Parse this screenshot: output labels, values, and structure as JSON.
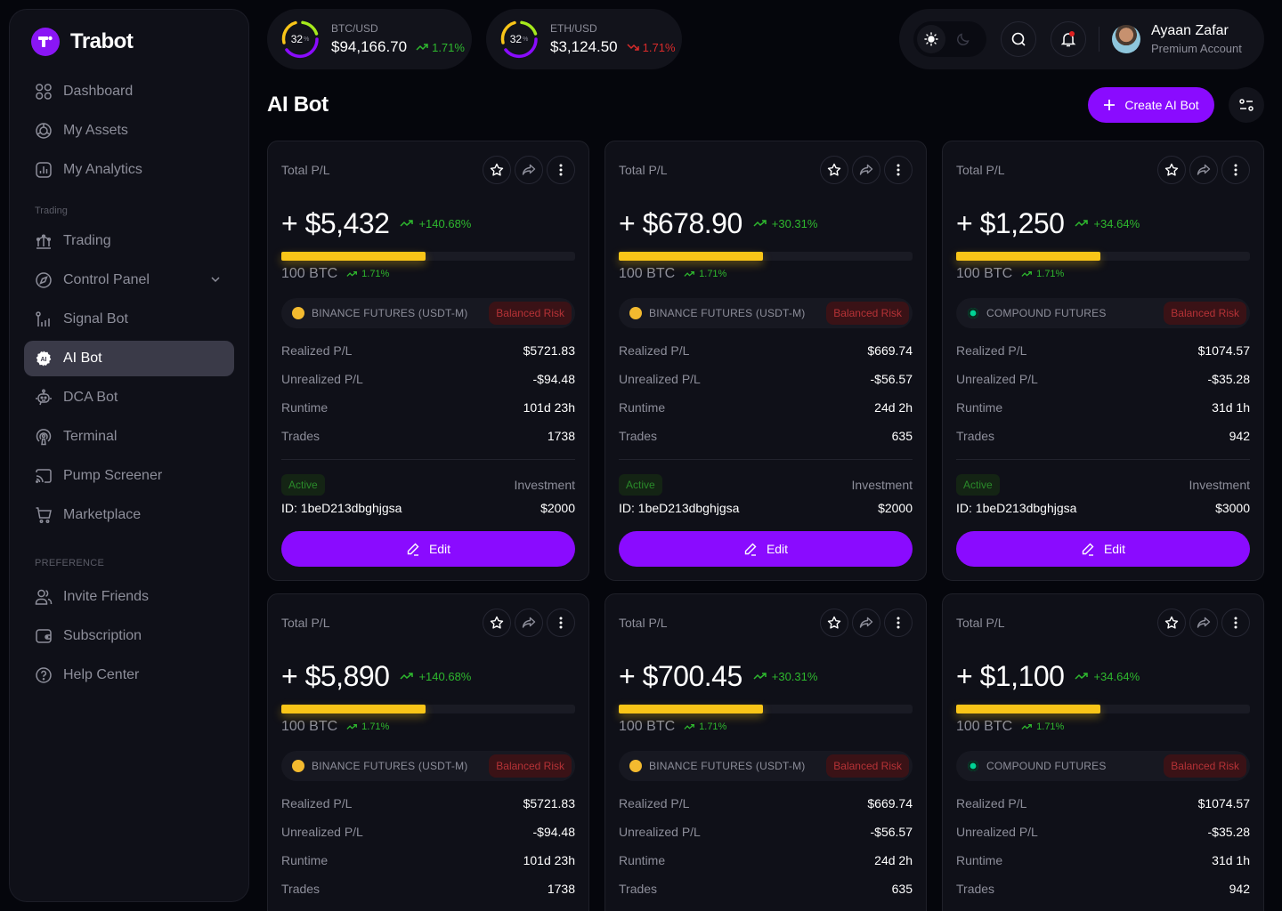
{
  "app": {
    "name": "Trabot"
  },
  "colors": {
    "accent": "#8a0bff",
    "up": "#2eb82e",
    "down": "#d92b2b",
    "progress": "#f9c518",
    "risk": "#b53236"
  },
  "sidebar": {
    "items": [
      {
        "label": "Dashboard",
        "icon": "grid-icon"
      },
      {
        "label": "My Assets",
        "icon": "pie-icon"
      },
      {
        "label": "My Analytics",
        "icon": "analytics-icon"
      }
    ],
    "section_trading": "Trading",
    "trading_items": [
      {
        "label": "Trading",
        "icon": "trading-icon"
      },
      {
        "label": "Control Panel",
        "icon": "compass-icon"
      },
      {
        "label": "Signal Bot",
        "icon": "signal-icon"
      },
      {
        "label": "AI Bot",
        "icon": "ai-chip-icon",
        "active": true
      },
      {
        "label": "DCA Bot",
        "icon": "robot-icon"
      },
      {
        "label": "Terminal",
        "icon": "podcast-icon"
      },
      {
        "label": "Pump Screener",
        "icon": "cast-icon"
      },
      {
        "label": "Marketplace",
        "icon": "cart-icon"
      }
    ],
    "section_preference": "PREFERENCE",
    "preference_items": [
      {
        "label": "Invite Friends",
        "icon": "users-icon"
      },
      {
        "label": "Subscription",
        "icon": "wallet-icon"
      },
      {
        "label": "Help Center",
        "icon": "help-icon"
      }
    ]
  },
  "tickers": [
    {
      "pair": "BTC/USD",
      "price": "$94,166.70",
      "change": "1.71%",
      "direction": "up",
      "gauge": "32",
      "gauge_unit": "%"
    },
    {
      "pair": "ETH/USD",
      "price": "$3,124.50",
      "change": "1.71%",
      "direction": "down",
      "gauge": "32",
      "gauge_unit": "%"
    }
  ],
  "user": {
    "name": "Ayaan Zafar",
    "plan": "Premium Account"
  },
  "page": {
    "title": "AI Bot",
    "create_label": "Create AI Bot"
  },
  "cards": [
    {
      "label": "Total P/L",
      "pl": "+ $5,432",
      "pl_change": "+140.68%",
      "volume": "100 BTC",
      "volume_change": "1.71%",
      "progress": 49,
      "exchange": "BINANCE FUTURES (USDT-M)",
      "coin": "binance",
      "risk": "Balanced Risk",
      "stats": [
        {
          "k": "Realized P/L",
          "v": "$5721.83"
        },
        {
          "k": "Unrealized P/L",
          "v": "-$94.48"
        },
        {
          "k": "Runtime",
          "v": "101d 23h"
        },
        {
          "k": "Trades",
          "v": "1738"
        }
      ],
      "status": "Active",
      "id": "ID: 1beD213dbghjgsa",
      "investment_label": "Investment",
      "investment": "$2000",
      "edit": "Edit"
    },
    {
      "label": "Total P/L",
      "pl": "+ $678.90",
      "pl_change": "+30.31%",
      "volume": "100 BTC",
      "volume_change": "1.71%",
      "progress": 49,
      "exchange": "BINANCE FUTURES (USDT-M)",
      "coin": "binance",
      "risk": "Balanced Risk",
      "stats": [
        {
          "k": "Realized P/L",
          "v": "$669.74"
        },
        {
          "k": "Unrealized P/L",
          "v": "-$56.57"
        },
        {
          "k": "Runtime",
          "v": "24d 2h"
        },
        {
          "k": "Trades",
          "v": "635"
        }
      ],
      "status": "Active",
      "id": "ID: 1beD213dbghjgsa",
      "investment_label": "Investment",
      "investment": "$2000",
      "edit": "Edit"
    },
    {
      "label": "Total P/L",
      "pl": "+ $1,250",
      "pl_change": "+34.64%",
      "volume": "100 BTC",
      "volume_change": "1.71%",
      "progress": 49,
      "exchange": "COMPOUND FUTURES",
      "coin": "compound",
      "risk": "Balanced Risk",
      "stats": [
        {
          "k": "Realized P/L",
          "v": "$1074.57"
        },
        {
          "k": "Unrealized P/L",
          "v": "-$35.28"
        },
        {
          "k": "Runtime",
          "v": "31d 1h"
        },
        {
          "k": "Trades",
          "v": "942"
        }
      ],
      "status": "Active",
      "id": "ID: 1beD213dbghjgsa",
      "investment_label": "Investment",
      "investment": "$3000",
      "edit": "Edit"
    },
    {
      "label": "Total P/L",
      "pl": "+ $5,890",
      "pl_change": "+140.68%",
      "volume": "100 BTC",
      "volume_change": "1.71%",
      "progress": 49,
      "exchange": "BINANCE FUTURES (USDT-M)",
      "coin": "binance",
      "risk": "Balanced Risk",
      "stats": [
        {
          "k": "Realized P/L",
          "v": "$5721.83"
        },
        {
          "k": "Unrealized P/L",
          "v": "-$94.48"
        },
        {
          "k": "Runtime",
          "v": "101d 23h"
        },
        {
          "k": "Trades",
          "v": "1738"
        }
      ]
    },
    {
      "label": "Total P/L",
      "pl": "+ $700.45",
      "pl_change": "+30.31%",
      "volume": "100 BTC",
      "volume_change": "1.71%",
      "progress": 49,
      "exchange": "BINANCE FUTURES (USDT-M)",
      "coin": "binance",
      "risk": "Balanced Risk",
      "stats": [
        {
          "k": "Realized P/L",
          "v": "$669.74"
        },
        {
          "k": "Unrealized P/L",
          "v": "-$56.57"
        },
        {
          "k": "Runtime",
          "v": "24d 2h"
        },
        {
          "k": "Trades",
          "v": "635"
        }
      ]
    },
    {
      "label": "Total P/L",
      "pl": "+ $1,100",
      "pl_change": "+34.64%",
      "volume": "100 BTC",
      "volume_change": "1.71%",
      "progress": 49,
      "exchange": "COMPOUND FUTURES",
      "coin": "compound",
      "risk": "Balanced Risk",
      "stats": [
        {
          "k": "Realized P/L",
          "v": "$1074.57"
        },
        {
          "k": "Unrealized P/L",
          "v": "-$35.28"
        },
        {
          "k": "Runtime",
          "v": "31d 1h"
        },
        {
          "k": "Trades",
          "v": "942"
        }
      ]
    }
  ]
}
